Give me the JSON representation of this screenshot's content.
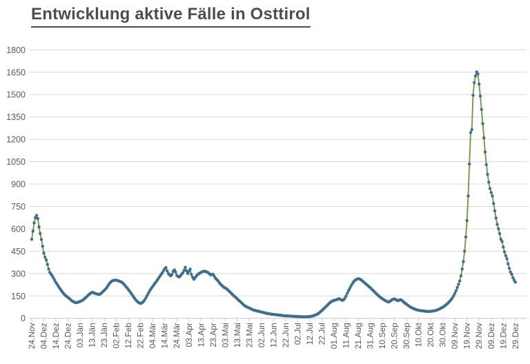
{
  "page": {
    "background": "#FFFFFF"
  },
  "colors": {
    "grid": "#D9D9D9",
    "axis": "#C6C6C6",
    "tick_label": "#595959",
    "title": "#4D4D4D",
    "line": "#78993F",
    "marker": "#3E6F8C"
  },
  "chart_data": {
    "type": "line",
    "title": "Entwicklung aktive Fälle in Osttirol",
    "xlabel": "",
    "ylabel": "",
    "ylim": [
      0,
      1800
    ],
    "y_ticks": [
      0,
      150,
      300,
      450,
      600,
      750,
      900,
      1050,
      1200,
      1350,
      1500,
      1650,
      1800
    ],
    "x_tick_step_days": 10,
    "x_tick_labels": [
      "24.Nov",
      "04.Dez",
      "14.Dez",
      "24.Dez",
      "03.Jän",
      "13.Jän",
      "23.Jän",
      "02.Feb",
      "12.Feb",
      "22.Feb",
      "04.Mär",
      "14.Mär",
      "24.Mär",
      "03.Apr",
      "13.Apr",
      "23.Apr",
      "03.Mai",
      "13.Mai",
      "23.Mai",
      "02.Jun",
      "12.Jun",
      "22.Jun",
      "02.Jul",
      "12.Jul",
      "22.Jul",
      "01.Aug",
      "11.Aug",
      "21.Aug",
      "31.Aug",
      "10.Sep",
      "20.Sep",
      "30.Sep",
      "10.Okt",
      "20.Okt",
      "30.Okt",
      "09.Nov",
      "19.Nov",
      "29.Nov",
      "09.Dez",
      "19.Dez",
      "29.Dez"
    ],
    "grid": "horizontal",
    "legend": "none",
    "series": [
      {
        "name": "aktive Fälle",
        "line_color": "#78993F",
        "marker_color": "#3E6F8C",
        "marker": "circle",
        "values": [
          530,
          585,
          640,
          675,
          690,
          668,
          613,
          568,
          529,
          483,
          437,
          410,
          391,
          361,
          330,
          307,
          295,
          284,
          270,
          255,
          240,
          228,
          215,
          203,
          192,
          180,
          170,
          160,
          152,
          146,
          140,
          133,
          126,
          119,
          113,
          109,
          106,
          105,
          107,
          110,
          113,
          116,
          121,
          127,
          134,
          141,
          149,
          157,
          164,
          170,
          174,
          172,
          168,
          165,
          163,
          161,
          160,
          165,
          172,
          180,
          188,
          196,
          205,
          218,
          230,
          240,
          248,
          252,
          255,
          256,
          255,
          253,
          250,
          247,
          243,
          239,
          230,
          222,
          210,
          203,
          192,
          181,
          170,
          158,
          146,
          135,
          124,
          115,
          108,
          103,
          100,
          103,
          109,
          119,
          131,
          146,
          161,
          176,
          190,
          202,
          213,
          225,
          236,
          246,
          258,
          270,
          282,
          294,
          305,
          320,
          333,
          340,
          318,
          300,
          291,
          285,
          295,
          315,
          325,
          310,
          288,
          280,
          277,
          285,
          296,
          305,
          322,
          342,
          318,
          300,
          315,
          330,
          295,
          276,
          262,
          270,
          282,
          292,
          298,
          303,
          308,
          312,
          315,
          316,
          314,
          310,
          306,
          298,
          291,
          294,
          296,
          282,
          268,
          260,
          252,
          240,
          230,
          222,
          215,
          208,
          203,
          199,
          192,
          184,
          176,
          168,
          160,
          152,
          145,
          138,
          130,
          122,
          115,
          108,
          100,
          92,
          85,
          80,
          76,
          72,
          69,
          65,
          61,
          57,
          54,
          52,
          50,
          48,
          46,
          44,
          42,
          40,
          38,
          36,
          34,
          32,
          31,
          30,
          28,
          27,
          26,
          25,
          24,
          23,
          22,
          21,
          20,
          19,
          18,
          17,
          17,
          16,
          16,
          15,
          15,
          14,
          14,
          13,
          13,
          12,
          12,
          11,
          11,
          11,
          10,
          10,
          10,
          10,
          11,
          11,
          12,
          13,
          15,
          17,
          20,
          23,
          27,
          32,
          38,
          45,
          52,
          60,
          68,
          76,
          84,
          92,
          100,
          107,
          113,
          117,
          120,
          122,
          125,
          128,
          131,
          128,
          124,
          120,
          124,
          135,
          150,
          168,
          185,
          200,
          216,
          230,
          242,
          252,
          258,
          263,
          265,
          264,
          260,
          254,
          247,
          240,
          233,
          226,
          219,
          212,
          205,
          197,
          189,
          181,
          173,
          165,
          157,
          150,
          143,
          137,
          131,
          126,
          121,
          116,
          112,
          109,
          112,
          118,
          124,
          128,
          130,
          126,
          121,
          118,
          122,
          125,
          121,
          114,
          107,
          100,
          94,
          88,
          82,
          77,
          72,
          68,
          64,
          61,
          58,
          56,
          54,
          52,
          51,
          50,
          49,
          48,
          47,
          46,
          46,
          46,
          47,
          48,
          49,
          50,
          52,
          55,
          58,
          62,
          66,
          70,
          75,
          80,
          86,
          93,
          100,
          108,
          117,
          127,
          138,
          152,
          168,
          186,
          207,
          228,
          250,
          285,
          330,
          380,
          450,
          545,
          655,
          820,
          1035,
          1245,
          1265,
          1495,
          1580,
          1625,
          1652,
          1638,
          1570,
          1490,
          1400,
          1305,
          1210,
          1115,
          1030,
          965,
          912,
          870,
          843,
          820,
          770,
          720,
          672,
          630,
          600,
          568,
          530,
          515,
          478,
          445,
          420,
          400,
          365,
          335,
          310,
          295,
          272,
          256,
          242
        ]
      }
    ]
  }
}
